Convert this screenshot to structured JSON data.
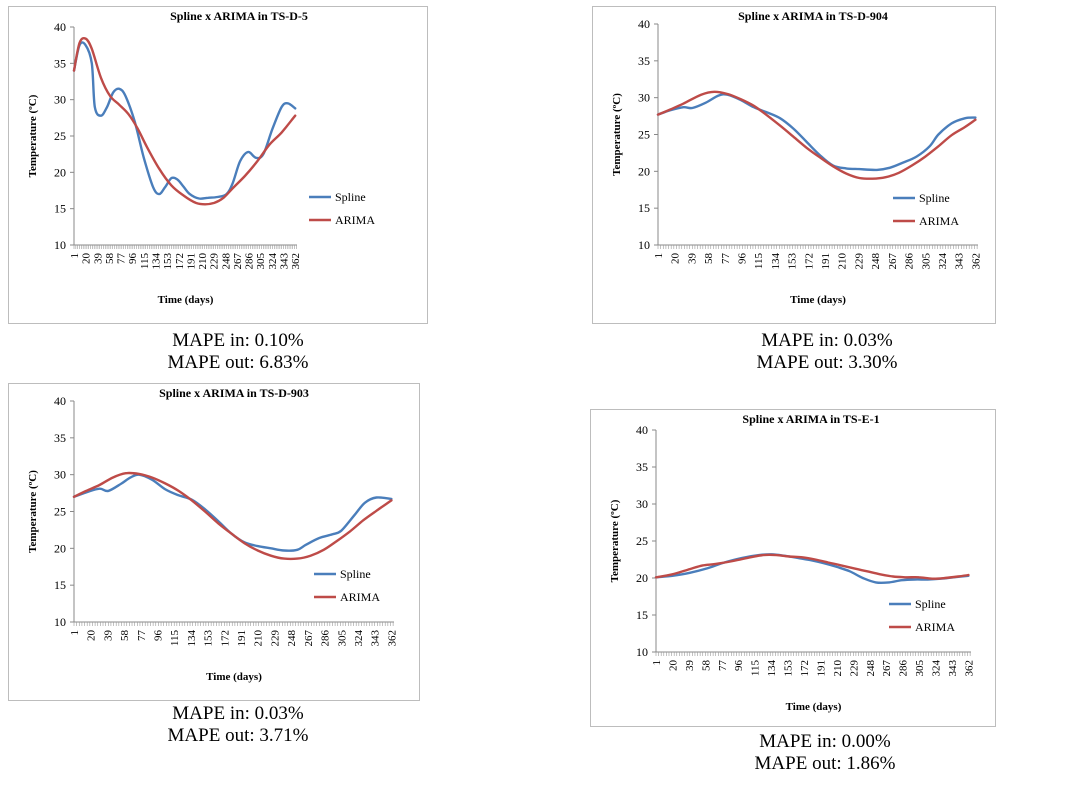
{
  "series_colors": {
    "Spline": "#4a7ebb",
    "ARIMA": "#be4b48"
  },
  "chart_data": [
    {
      "type": "line",
      "title": "Spline x ARIMA in TS-D-5",
      "xlabel": "Time (days)",
      "ylabel": "Temperature (ºC)",
      "ylim": [
        10,
        40
      ],
      "yticks": [
        10,
        15,
        20,
        25,
        30,
        35,
        40
      ],
      "xlim": [
        1,
        365
      ],
      "xtick_labels": [
        "1",
        "20",
        "39",
        "58",
        "77",
        "96",
        "115",
        "134",
        "153",
        "172",
        "191",
        "210",
        "229",
        "248",
        "267",
        "286",
        "305",
        "324",
        "343",
        "362"
      ],
      "legend_position": "right",
      "grid": false,
      "series": [
        {
          "name": "Spline",
          "points": [
            [
              1,
              34
            ],
            [
              10,
              37.5
            ],
            [
              20,
              37.5
            ],
            [
              30,
              35
            ],
            [
              35,
              29
            ],
            [
              45,
              27.8
            ],
            [
              55,
              29
            ],
            [
              65,
              31
            ],
            [
              75,
              31.5
            ],
            [
              85,
              30.5
            ],
            [
              100,
              27
            ],
            [
              115,
              22
            ],
            [
              130,
              18
            ],
            [
              140,
              17
            ],
            [
              150,
              18
            ],
            [
              160,
              19.2
            ],
            [
              170,
              19
            ],
            [
              180,
              18
            ],
            [
              190,
              17
            ],
            [
              205,
              16.4
            ],
            [
              220,
              16.5
            ],
            [
              235,
              16.6
            ],
            [
              250,
              17
            ],
            [
              260,
              18.5
            ],
            [
              272,
              21.5
            ],
            [
              285,
              22.8
            ],
            [
              298,
              22
            ],
            [
              310,
              22.5
            ],
            [
              325,
              26
            ],
            [
              340,
              29
            ],
            [
              350,
              29.5
            ],
            [
              362,
              28.8
            ]
          ]
        },
        {
          "name": "ARIMA",
          "points": [
            [
              1,
              34
            ],
            [
              10,
              37.8
            ],
            [
              20,
              38.4
            ],
            [
              30,
              37
            ],
            [
              45,
              33
            ],
            [
              60,
              30.5
            ],
            [
              75,
              29.3
            ],
            [
              90,
              28
            ],
            [
              105,
              26
            ],
            [
              120,
              23.5
            ],
            [
              140,
              20.5
            ],
            [
              160,
              18.2
            ],
            [
              180,
              16.8
            ],
            [
              200,
              15.8
            ],
            [
              215,
              15.6
            ],
            [
              230,
              15.8
            ],
            [
              245,
              16.5
            ],
            [
              260,
              17.8
            ],
            [
              280,
              19.5
            ],
            [
              300,
              21.5
            ],
            [
              320,
              23.8
            ],
            [
              340,
              25.5
            ],
            [
              362,
              27.8
            ]
          ]
        }
      ]
    },
    {
      "type": "line",
      "title": "Spline x ARIMA in TS-D-904",
      "xlabel": "Time (days)",
      "ylabel": "Temperature (ºC)",
      "ylim": [
        10,
        40
      ],
      "yticks": [
        10,
        15,
        20,
        25,
        30,
        35,
        40
      ],
      "xlim": [
        1,
        365
      ],
      "xtick_labels": [
        "1",
        "20",
        "39",
        "58",
        "77",
        "96",
        "115",
        "134",
        "153",
        "172",
        "191",
        "210",
        "229",
        "248",
        "267",
        "286",
        "305",
        "324",
        "343",
        "362"
      ],
      "legend_position": "right",
      "grid": false,
      "series": [
        {
          "name": "Spline",
          "points": [
            [
              1,
              27.7
            ],
            [
              15,
              28.3
            ],
            [
              30,
              28.7
            ],
            [
              40,
              28.6
            ],
            [
              55,
              29.3
            ],
            [
              70,
              30.3
            ],
            [
              80,
              30.4
            ],
            [
              95,
              29.7
            ],
            [
              110,
              28.7
            ],
            [
              125,
              28
            ],
            [
              140,
              27.2
            ],
            [
              155,
              25.8
            ],
            [
              170,
              24
            ],
            [
              185,
              22.2
            ],
            [
              200,
              20.8
            ],
            [
              215,
              20.4
            ],
            [
              230,
              20.3
            ],
            [
              250,
              20.2
            ],
            [
              265,
              20.5
            ],
            [
              280,
              21.2
            ],
            [
              295,
              22
            ],
            [
              310,
              23.4
            ],
            [
              320,
              25
            ],
            [
              335,
              26.5
            ],
            [
              350,
              27.2
            ],
            [
              362,
              27.3
            ]
          ]
        },
        {
          "name": "ARIMA",
          "points": [
            [
              1,
              27.7
            ],
            [
              15,
              28.4
            ],
            [
              30,
              29.2
            ],
            [
              50,
              30.4
            ],
            [
              65,
              30.8
            ],
            [
              80,
              30.5
            ],
            [
              95,
              29.8
            ],
            [
              110,
              28.9
            ],
            [
              125,
              27.6
            ],
            [
              140,
              26.2
            ],
            [
              155,
              24.7
            ],
            [
              170,
              23.2
            ],
            [
              185,
              21.9
            ],
            [
              200,
              20.7
            ],
            [
              215,
              19.7
            ],
            [
              230,
              19.1
            ],
            [
              245,
              19
            ],
            [
              260,
              19.2
            ],
            [
              275,
              19.8
            ],
            [
              290,
              20.8
            ],
            [
              305,
              22
            ],
            [
              320,
              23.4
            ],
            [
              335,
              24.9
            ],
            [
              350,
              26
            ],
            [
              362,
              27
            ]
          ]
        }
      ]
    },
    {
      "type": "line",
      "title": "Spline x ARIMA in TS-D-903",
      "xlabel": "Time (days)",
      "ylabel": "Temperature (ºC)",
      "ylim": [
        10,
        40
      ],
      "yticks": [
        10,
        15,
        20,
        25,
        30,
        35,
        40
      ],
      "xlim": [
        1,
        365
      ],
      "xtick_labels": [
        "1",
        "20",
        "39",
        "58",
        "77",
        "96",
        "115",
        "134",
        "153",
        "172",
        "191",
        "210",
        "229",
        "248",
        "267",
        "286",
        "305",
        "324",
        "343",
        "362"
      ],
      "legend_position": "right",
      "grid": false,
      "series": [
        {
          "name": "Spline",
          "points": [
            [
              1,
              27
            ],
            [
              15,
              27.6
            ],
            [
              30,
              28.1
            ],
            [
              40,
              27.8
            ],
            [
              55,
              28.8
            ],
            [
              65,
              29.6
            ],
            [
              75,
              30
            ],
            [
              90,
              29.3
            ],
            [
              105,
              28
            ],
            [
              120,
              27.2
            ],
            [
              135,
              26.6
            ],
            [
              150,
              25.3
            ],
            [
              165,
              23.7
            ],
            [
              180,
              22
            ],
            [
              195,
              20.8
            ],
            [
              210,
              20.3
            ],
            [
              225,
              20
            ],
            [
              240,
              19.7
            ],
            [
              255,
              19.8
            ],
            [
              265,
              20.5
            ],
            [
              280,
              21.4
            ],
            [
              295,
              21.9
            ],
            [
              305,
              22.4
            ],
            [
              320,
              24.5
            ],
            [
              332,
              26.2
            ],
            [
              345,
              26.9
            ],
            [
              362,
              26.7
            ]
          ]
        },
        {
          "name": "ARIMA",
          "points": [
            [
              1,
              27
            ],
            [
              15,
              27.8
            ],
            [
              30,
              28.6
            ],
            [
              45,
              29.6
            ],
            [
              60,
              30.2
            ],
            [
              75,
              30.1
            ],
            [
              90,
              29.6
            ],
            [
              105,
              28.8
            ],
            [
              120,
              27.8
            ],
            [
              135,
              26.5
            ],
            [
              150,
              25
            ],
            [
              165,
              23.4
            ],
            [
              180,
              22
            ],
            [
              195,
              20.7
            ],
            [
              210,
              19.7
            ],
            [
              225,
              19
            ],
            [
              240,
              18.6
            ],
            [
              255,
              18.6
            ],
            [
              270,
              19
            ],
            [
              285,
              19.8
            ],
            [
              300,
              21
            ],
            [
              315,
              22.3
            ],
            [
              330,
              23.8
            ],
            [
              345,
              25.1
            ],
            [
              362,
              26.5
            ]
          ]
        }
      ]
    },
    {
      "type": "line",
      "title": "Spline x ARIMA in TS-E-1",
      "xlabel": "Time (days)",
      "ylabel": "Temperature (ºC)",
      "ylim": [
        10,
        40
      ],
      "yticks": [
        10,
        15,
        20,
        25,
        30,
        35,
        40
      ],
      "xlim": [
        1,
        365
      ],
      "xtick_labels": [
        "1",
        "20",
        "39",
        "58",
        "77",
        "96",
        "115",
        "134",
        "153",
        "172",
        "191",
        "210",
        "229",
        "248",
        "267",
        "286",
        "305",
        "324",
        "343",
        "362"
      ],
      "legend_position": "right",
      "grid": false,
      "series": [
        {
          "name": "Spline",
          "points": [
            [
              1,
              20.1
            ],
            [
              20,
              20.3
            ],
            [
              40,
              20.7
            ],
            [
              60,
              21.3
            ],
            [
              80,
              22.1
            ],
            [
              100,
              22.7
            ],
            [
              120,
              23.1
            ],
            [
              135,
              23.2
            ],
            [
              150,
              23
            ],
            [
              165,
              22.7
            ],
            [
              180,
              22.4
            ],
            [
              195,
              22
            ],
            [
              210,
              21.5
            ],
            [
              225,
              20.9
            ],
            [
              240,
              20
            ],
            [
              255,
              19.4
            ],
            [
              270,
              19.4
            ],
            [
              285,
              19.7
            ],
            [
              300,
              19.8
            ],
            [
              315,
              19.8
            ],
            [
              330,
              19.9
            ],
            [
              345,
              20.1
            ],
            [
              362,
              20.3
            ]
          ]
        },
        {
          "name": "ARIMA",
          "points": [
            [
              1,
              20.1
            ],
            [
              20,
              20.5
            ],
            [
              40,
              21.2
            ],
            [
              55,
              21.7
            ],
            [
              70,
              21.9
            ],
            [
              90,
              22.3
            ],
            [
              110,
              22.8
            ],
            [
              125,
              23.1
            ],
            [
              140,
              23.1
            ],
            [
              155,
              22.9
            ],
            [
              170,
              22.8
            ],
            [
              185,
              22.5
            ],
            [
              200,
              22.1
            ],
            [
              215,
              21.7
            ],
            [
              230,
              21.3
            ],
            [
              245,
              20.9
            ],
            [
              260,
              20.5
            ],
            [
              275,
              20.2
            ],
            [
              290,
              20.1
            ],
            [
              305,
              20.1
            ],
            [
              320,
              19.9
            ],
            [
              335,
              20
            ],
            [
              350,
              20.2
            ],
            [
              362,
              20.4
            ]
          ]
        }
      ]
    }
  ],
  "captions": [
    {
      "mape_in": "MAPE in: 0.10%",
      "mape_out": "MAPE out: 6.83%"
    },
    {
      "mape_in": "MAPE in: 0.03%",
      "mape_out": "MAPE out: 3.30%"
    },
    {
      "mape_in": "MAPE in: 0.03%",
      "mape_out": "MAPE out: 3.71%"
    },
    {
      "mape_in": "MAPE in: 0.00%",
      "mape_out": "MAPE out: 1.86%"
    }
  ]
}
